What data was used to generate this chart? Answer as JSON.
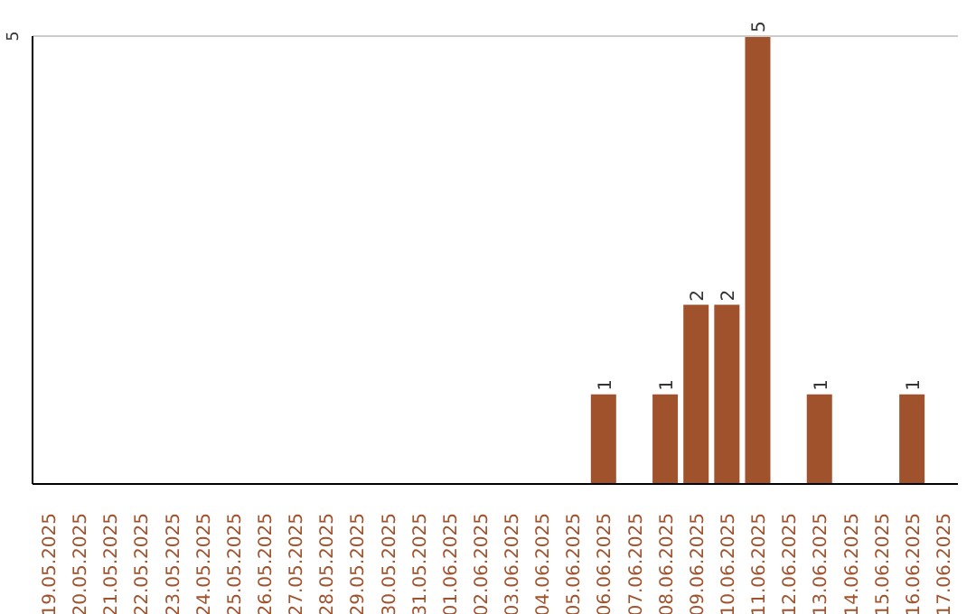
{
  "chart_data": {
    "type": "bar",
    "categories": [
      "19.05.2025",
      "20.05.2025",
      "21.05.2025",
      "22.05.2025",
      "23.05.2025",
      "24.05.2025",
      "25.05.2025",
      "26.05.2025",
      "27.05.2025",
      "28.05.2025",
      "29.05.2025",
      "30.05.2025",
      "31.05.2025",
      "01.06.2025",
      "02.06.2025",
      "03.06.2025",
      "04.06.2025",
      "05.06.2025",
      "06.06.2025",
      "07.06.2025",
      "08.06.2025",
      "09.06.2025",
      "10.06.2025",
      "11.06.2025",
      "12.06.2025",
      "13.06.2025",
      "14.06.2025",
      "15.06.2025",
      "16.06.2025",
      "17.06.2025"
    ],
    "values": [
      null,
      null,
      null,
      null,
      null,
      null,
      null,
      null,
      null,
      null,
      null,
      null,
      null,
      null,
      null,
      null,
      null,
      null,
      1,
      null,
      1,
      2,
      2,
      5,
      null,
      1,
      null,
      null,
      1,
      null
    ],
    "data_labels": true,
    "color": "#a0522d",
    "ylim": [
      0,
      5
    ],
    "yticks": [
      5
    ],
    "ref_lines": [
      {
        "axis": "y",
        "value": 5,
        "label": null,
        "color": "#cccccc"
      }
    ]
  }
}
